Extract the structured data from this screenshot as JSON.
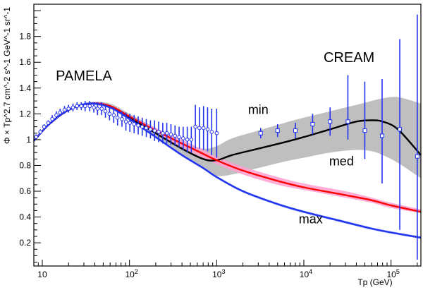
{
  "chart_data": {
    "type": "line",
    "title": "",
    "xlabel": "Tp (GeV)",
    "ylabel": "Φ × Tp^2.7 cm^-2 s^-1 GeV^-1 sr^-1",
    "xscale": "log",
    "xlim": [
      8,
      220000
    ],
    "ylim": [
      0.02,
      2.05
    ],
    "x_ticks": [
      {
        "value": 10,
        "base": "10",
        "exp": ""
      },
      {
        "value": 100,
        "base": "10",
        "exp": "2"
      },
      {
        "value": 1000,
        "base": "10",
        "exp": "3"
      },
      {
        "value": 10000,
        "base": "10",
        "exp": "4"
      },
      {
        "value": 100000,
        "base": "10",
        "exp": "5"
      }
    ],
    "y_ticks": [
      {
        "value": 0.2,
        "label": "0.2"
      },
      {
        "value": 0.4,
        "label": "0.4"
      },
      {
        "value": 0.6,
        "label": "0.6"
      },
      {
        "value": 0.8,
        "label": "0.8"
      },
      {
        "value": 1.0,
        "label": "1"
      },
      {
        "value": 1.2,
        "label": "1.2"
      },
      {
        "value": 1.4,
        "label": "1.4"
      },
      {
        "value": 1.6,
        "label": "1.6"
      },
      {
        "value": 1.8,
        "label": "1.8"
      }
    ],
    "annotations": [
      {
        "text": "PAMELA",
        "x": 30,
        "y": 1.46
      },
      {
        "text": "CREAM",
        "x": 33000,
        "y": 1.6
      },
      {
        "text": "min",
        "x": 3000,
        "y": 1.2
      },
      {
        "text": "med",
        "x": 27000,
        "y": 0.8
      },
      {
        "text": "max",
        "x": 12000,
        "y": 0.35
      }
    ],
    "series": [
      {
        "name": "min",
        "color": "#000000",
        "band_color": "#b4b4b4",
        "x": [
          8,
          12,
          20,
          35,
          60,
          100,
          200,
          400,
          700,
          1000,
          1500,
          3000,
          6000,
          10000,
          20000,
          40000,
          60000,
          80000,
          120000,
          220000
        ],
        "values": [
          0.99,
          1.12,
          1.23,
          1.28,
          1.26,
          1.17,
          1.05,
          0.93,
          0.85,
          0.84,
          0.88,
          0.93,
          0.98,
          1.02,
          1.08,
          1.14,
          1.15,
          1.14,
          1.08,
          0.88
        ],
        "band_lo": [
          0.98,
          1.11,
          1.22,
          1.27,
          1.24,
          1.15,
          1.01,
          0.88,
          0.77,
          0.72,
          0.73,
          0.78,
          0.83,
          0.86,
          0.9,
          0.92,
          0.91,
          0.88,
          0.82,
          0.7
        ],
        "band_hi": [
          1.0,
          1.13,
          1.24,
          1.29,
          1.28,
          1.2,
          1.09,
          0.98,
          0.93,
          0.95,
          1.01,
          1.07,
          1.13,
          1.17,
          1.22,
          1.27,
          1.3,
          1.32,
          1.33,
          1.28
        ]
      },
      {
        "name": "med",
        "color": "#ff0000",
        "band_color": "#ff9fcf",
        "x": [
          8,
          12,
          20,
          35,
          60,
          100,
          200,
          400,
          700,
          1000,
          2000,
          5000,
          10000,
          30000,
          60000,
          100000,
          220000
        ],
        "values": [
          0.99,
          1.12,
          1.23,
          1.28,
          1.26,
          1.18,
          1.07,
          0.97,
          0.89,
          0.84,
          0.76,
          0.68,
          0.63,
          0.57,
          0.53,
          0.49,
          0.44
        ],
        "band_lo": [
          0.98,
          1.11,
          1.22,
          1.27,
          1.25,
          1.17,
          1.05,
          0.94,
          0.86,
          0.81,
          0.73,
          0.65,
          0.61,
          0.55,
          0.51,
          0.47,
          0.43
        ],
        "band_hi": [
          1.0,
          1.13,
          1.24,
          1.29,
          1.27,
          1.19,
          1.09,
          1.0,
          0.92,
          0.87,
          0.79,
          0.71,
          0.66,
          0.6,
          0.55,
          0.51,
          0.46
        ]
      },
      {
        "name": "max",
        "color": "#2233ee",
        "band_color": "#a8b8ff",
        "x": [
          8,
          12,
          20,
          35,
          60,
          100,
          200,
          400,
          700,
          1000,
          2000,
          5000,
          10000,
          30000,
          60000,
          100000,
          220000
        ],
        "values": [
          0.99,
          1.12,
          1.23,
          1.28,
          1.25,
          1.16,
          1.02,
          0.88,
          0.78,
          0.71,
          0.6,
          0.5,
          0.44,
          0.36,
          0.31,
          0.28,
          0.24
        ],
        "band_lo": [
          0.98,
          1.11,
          1.22,
          1.27,
          1.24,
          1.15,
          1.01,
          0.87,
          0.77,
          0.7,
          0.59,
          0.49,
          0.43,
          0.35,
          0.3,
          0.27,
          0.23
        ],
        "band_hi": [
          1.0,
          1.13,
          1.24,
          1.29,
          1.26,
          1.17,
          1.03,
          0.89,
          0.79,
          0.72,
          0.61,
          0.51,
          0.45,
          0.37,
          0.32,
          0.29,
          0.25
        ]
      }
    ],
    "data_series": [
      {
        "name": "PAMELA",
        "marker": "circle",
        "color": "#2233ee",
        "x": [
          8.5,
          9.5,
          10.5,
          11.7,
          13,
          14.5,
          16,
          18,
          20,
          22.5,
          25,
          28,
          31,
          35,
          39,
          43,
          48,
          53,
          59,
          66,
          73,
          82,
          91,
          101,
          113,
          126,
          140,
          156,
          174,
          194,
          216,
          241,
          268,
          299,
          333,
          371,
          413,
          460,
          512,
          570,
          635,
          707,
          787,
          877,
          1000
        ],
        "values": [
          1.02,
          1.06,
          1.1,
          1.13,
          1.16,
          1.19,
          1.21,
          1.23,
          1.24,
          1.25,
          1.26,
          1.26,
          1.26,
          1.26,
          1.25,
          1.24,
          1.24,
          1.22,
          1.2,
          1.19,
          1.17,
          1.16,
          1.14,
          1.13,
          1.12,
          1.11,
          1.1,
          1.09,
          1.08,
          1.07,
          1.06,
          1.05,
          1.05,
          1.04,
          1.03,
          1.02,
          1.01,
          1.0,
          1.0,
          1.1,
          1.09,
          1.09,
          1.08,
          1.06,
          1.05
        ],
        "err": [
          0.02,
          0.02,
          0.02,
          0.02,
          0.03,
          0.03,
          0.03,
          0.03,
          0.03,
          0.03,
          0.03,
          0.03,
          0.04,
          0.04,
          0.04,
          0.05,
          0.05,
          0.05,
          0.05,
          0.06,
          0.06,
          0.06,
          0.07,
          0.07,
          0.07,
          0.07,
          0.07,
          0.07,
          0.07,
          0.08,
          0.08,
          0.08,
          0.08,
          0.08,
          0.08,
          0.08,
          0.09,
          0.1,
          0.1,
          0.17,
          0.16,
          0.17,
          0.17,
          0.18,
          0.19
        ]
      },
      {
        "name": "CREAM",
        "marker": "square",
        "color": "#2233ee",
        "x": [
          3200,
          5000,
          8000,
          12600,
          20000,
          32000,
          50000,
          79000,
          126000,
          200000
        ],
        "values": [
          1.05,
          1.07,
          1.07,
          1.12,
          1.14,
          1.14,
          1.07,
          1.03,
          1.08,
          0.87
        ],
        "err_lo": [
          0.04,
          0.05,
          0.06,
          0.08,
          0.11,
          0.14,
          0.22,
          0.37,
          0.78,
          0.8
        ],
        "err_hi": [
          0.04,
          0.05,
          0.06,
          0.08,
          0.11,
          0.36,
          0.38,
          0.44,
          0.7,
          1.1
        ]
      }
    ]
  }
}
